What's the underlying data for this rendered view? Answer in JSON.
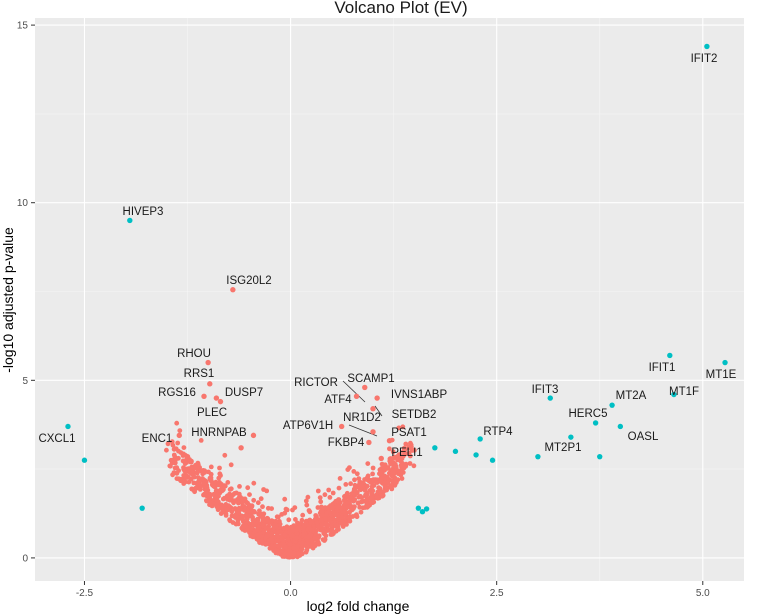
{
  "chart_data": {
    "type": "scatter",
    "title": "Volcano Plot (EV)",
    "xlabel": "log2 fold change",
    "ylabel": "-log10 adjusted p-value",
    "xlim": [
      -3.1,
      5.5
    ],
    "ylim": [
      -0.65,
      15.2
    ],
    "xticks": [
      -2.5,
      0.0,
      2.5,
      5.0
    ],
    "xtick_labels": [
      "-2.5",
      "0.0",
      "2.5",
      "5.0"
    ],
    "yticks": [
      0,
      5,
      10,
      15
    ],
    "ytick_labels": [
      "0",
      "5",
      "10",
      "15"
    ],
    "grid": true,
    "colors": {
      "not_significant": "#F8766D",
      "significant": "#00BFC4",
      "panel_background": "#EBEBEB",
      "grid": "#FFFFFF"
    },
    "series": [
      {
        "name": "significant",
        "color": "#00BFC4",
        "points": [
          {
            "x": 5.05,
            "y": 14.4,
            "label": "IFIT2"
          },
          {
            "x": -1.95,
            "y": 9.5,
            "label": ""
          },
          {
            "x": 4.6,
            "y": 5.7,
            "label": "IFIT1"
          },
          {
            "x": 5.27,
            "y": 5.5,
            "label": "MT1E"
          },
          {
            "x": 4.65,
            "y": 4.6,
            "label": "MT1F"
          },
          {
            "x": 3.15,
            "y": 4.5,
            "label": "IFIT3"
          },
          {
            "x": 3.9,
            "y": 4.3,
            "label": "MT2A"
          },
          {
            "x": 3.7,
            "y": 3.8,
            "label": ""
          },
          {
            "x": 4.0,
            "y": 3.7,
            "label": ""
          },
          {
            "x": 3.4,
            "y": 3.4,
            "label": ""
          },
          {
            "x": -2.7,
            "y": 3.7,
            "label": "CXCL1"
          },
          {
            "x": 2.3,
            "y": 3.35,
            "label": "RTP4"
          },
          {
            "x": 1.75,
            "y": 3.1,
            "label": ""
          },
          {
            "x": 2.0,
            "y": 3.0,
            "label": ""
          },
          {
            "x": 2.25,
            "y": 2.9,
            "label": ""
          },
          {
            "x": 2.45,
            "y": 2.75,
            "label": ""
          },
          {
            "x": 3.0,
            "y": 2.85,
            "label": ""
          },
          {
            "x": 3.75,
            "y": 2.85,
            "label": ""
          },
          {
            "x": -2.5,
            "y": 2.75,
            "label": ""
          },
          {
            "x": -1.8,
            "y": 1.4,
            "label": ""
          },
          {
            "x": 1.55,
            "y": 1.4,
            "label": ""
          },
          {
            "x": 1.6,
            "y": 1.3,
            "label": ""
          },
          {
            "x": 1.65,
            "y": 1.38,
            "label": ""
          }
        ]
      },
      {
        "name": "not_significant",
        "color": "#F8766D",
        "points": [
          {
            "x": -0.7,
            "y": 7.55,
            "label": ""
          },
          {
            "x": -1.0,
            "y": 5.5,
            "label": ""
          },
          {
            "x": -0.98,
            "y": 4.9,
            "label": ""
          },
          {
            "x": -0.9,
            "y": 4.5,
            "label": ""
          },
          {
            "x": -0.85,
            "y": 4.4,
            "label": ""
          },
          {
            "x": -1.05,
            "y": 4.55,
            "label": ""
          },
          {
            "x": -1.35,
            "y": 3.45,
            "label": ""
          },
          {
            "x": -0.45,
            "y": 3.45,
            "label": ""
          },
          {
            "x": -1.25,
            "y": 2.85,
            "label": ""
          },
          {
            "x": -0.6,
            "y": 3.1,
            "label": ""
          },
          {
            "x": 0.9,
            "y": 4.8,
            "label": ""
          },
          {
            "x": 0.8,
            "y": 4.55,
            "label": ""
          },
          {
            "x": 1.05,
            "y": 4.5,
            "label": ""
          },
          {
            "x": 1.0,
            "y": 4.2,
            "label": ""
          },
          {
            "x": 0.62,
            "y": 3.7,
            "label": ""
          },
          {
            "x": 1.0,
            "y": 3.55,
            "label": ""
          },
          {
            "x": 0.95,
            "y": 3.25,
            "label": ""
          },
          {
            "x": 1.2,
            "y": 3.3,
            "label": ""
          },
          {
            "x": 1.1,
            "y": 2.8,
            "label": ""
          }
        ]
      }
    ],
    "annotations": [
      {
        "text": "IFIT2"
      },
      {
        "text": "HIVEP3"
      },
      {
        "text": "ISG20L2"
      },
      {
        "text": "RHOU"
      },
      {
        "text": "RRS1"
      },
      {
        "text": "RGS16"
      },
      {
        "text": "DUSP7"
      },
      {
        "text": "PLEC"
      },
      {
        "text": "HNRNPAB"
      },
      {
        "text": "ENC1"
      },
      {
        "text": "CXCL1"
      },
      {
        "text": "RICTOR"
      },
      {
        "text": "SCAMP1"
      },
      {
        "text": "ATF4"
      },
      {
        "text": "IVNS1ABP"
      },
      {
        "text": "NR1D2"
      },
      {
        "text": "SETDB2"
      },
      {
        "text": "ATP6V1H"
      },
      {
        "text": "PSAT1"
      },
      {
        "text": "FKBP4"
      },
      {
        "text": "PELI1"
      },
      {
        "text": "RTP4"
      },
      {
        "text": "IFIT3"
      },
      {
        "text": "MT2P1"
      },
      {
        "text": "HERC5"
      },
      {
        "text": "MT2A"
      },
      {
        "text": "OASL"
      },
      {
        "text": "IFIT1"
      },
      {
        "text": "MT1E"
      },
      {
        "text": "MT1F"
      }
    ]
  }
}
